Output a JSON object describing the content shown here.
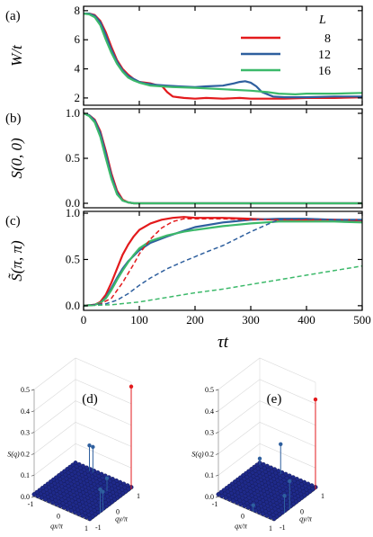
{
  "chart_data": [
    {
      "panel": "(a)",
      "type": "line",
      "ylabel": "W/t",
      "xlim": [
        0,
        500
      ],
      "ylim": [
        1.5,
        8.3
      ],
      "yticks": [
        "2",
        "4",
        "6",
        "8"
      ],
      "legend": {
        "title": "L",
        "placement": "top-right",
        "entries": [
          "8",
          "12",
          "16"
        ]
      },
      "series": [
        {
          "name": "8",
          "color": "#e31a1c",
          "x": [
            0,
            10,
            20,
            30,
            40,
            50,
            60,
            70,
            80,
            90,
            100,
            110,
            120,
            130,
            140,
            150,
            160,
            170,
            180,
            200,
            220,
            250,
            280,
            300,
            330,
            360,
            400,
            450,
            500
          ],
          "y": [
            7.8,
            7.8,
            7.7,
            7.3,
            6.5,
            5.5,
            4.6,
            4.0,
            3.6,
            3.3,
            3.1,
            3.05,
            3.0,
            2.9,
            2.85,
            2.4,
            2.1,
            2.05,
            2.0,
            1.95,
            2.0,
            1.95,
            2.0,
            1.95,
            1.95,
            1.95,
            2.0,
            2.0,
            2.05
          ]
        },
        {
          "name": "12",
          "color": "#2e5f9e",
          "x": [
            0,
            10,
            20,
            30,
            40,
            50,
            60,
            70,
            80,
            90,
            100,
            110,
            120,
            130,
            150,
            170,
            200,
            220,
            250,
            270,
            280,
            290,
            300,
            310,
            320,
            340,
            360,
            400,
            450,
            500
          ],
          "y": [
            7.8,
            7.8,
            7.65,
            7.2,
            6.3,
            5.3,
            4.5,
            3.9,
            3.5,
            3.3,
            3.1,
            3.0,
            2.95,
            2.9,
            2.85,
            2.8,
            2.75,
            2.8,
            2.85,
            3.0,
            3.1,
            3.15,
            3.05,
            2.8,
            2.4,
            2.1,
            2.05,
            2.05,
            2.1,
            2.1
          ]
        },
        {
          "name": "16",
          "color": "#3cb96a",
          "x": [
            0,
            10,
            20,
            30,
            40,
            50,
            60,
            70,
            80,
            90,
            100,
            110,
            120,
            140,
            160,
            200,
            250,
            300,
            330,
            350,
            380,
            400,
            450,
            500
          ],
          "y": [
            7.8,
            7.75,
            7.55,
            7.0,
            6.0,
            5.1,
            4.35,
            3.8,
            3.4,
            3.2,
            3.05,
            2.95,
            2.85,
            2.8,
            2.75,
            2.7,
            2.6,
            2.5,
            2.4,
            2.3,
            2.25,
            2.3,
            2.3,
            2.35
          ]
        }
      ]
    },
    {
      "panel": "(b)",
      "type": "line",
      "ylabel": "S(0, 0)",
      "xlim": [
        0,
        500
      ],
      "ylim": [
        -0.05,
        1.05
      ],
      "yticks": [
        "0.0",
        "0.5",
        "1.0"
      ],
      "series": [
        {
          "name": "8",
          "color": "#e31a1c",
          "x": [
            0,
            10,
            20,
            30,
            40,
            50,
            60,
            70,
            80,
            90,
            100,
            120,
            500
          ],
          "y": [
            1.0,
            0.98,
            0.93,
            0.8,
            0.58,
            0.33,
            0.14,
            0.04,
            0.01,
            0.0,
            0.0,
            0.0,
            0.0
          ]
        },
        {
          "name": "12",
          "color": "#2e5f9e",
          "x": [
            0,
            10,
            20,
            30,
            40,
            50,
            60,
            70,
            80,
            90,
            100,
            120,
            500
          ],
          "y": [
            1.0,
            0.98,
            0.92,
            0.78,
            0.55,
            0.3,
            0.12,
            0.03,
            0.01,
            0.0,
            0.0,
            0.0,
            0.0
          ]
        },
        {
          "name": "16",
          "color": "#3cb96a",
          "x": [
            0,
            10,
            20,
            30,
            40,
            50,
            60,
            70,
            80,
            90,
            100,
            120,
            500
          ],
          "y": [
            1.0,
            0.97,
            0.9,
            0.74,
            0.5,
            0.27,
            0.1,
            0.03,
            0.01,
            0.0,
            0.0,
            0.0,
            0.0
          ]
        }
      ]
    },
    {
      "panel": "(c)",
      "type": "line",
      "ylabel": "S̃(π, π)",
      "xlabel": "τt",
      "xlim": [
        0,
        500
      ],
      "ylim": [
        -0.05,
        1.02
      ],
      "xticks": [
        "0",
        "100",
        "200",
        "300",
        "400",
        "500"
      ],
      "yticks": [
        "0.0",
        "0.5",
        "1.0"
      ],
      "series": [
        {
          "name": "8",
          "color": "#e31a1c",
          "style": "solid",
          "x": [
            0,
            20,
            30,
            40,
            50,
            60,
            70,
            80,
            90,
            100,
            120,
            140,
            160,
            180,
            200,
            250,
            300,
            350,
            400,
            450,
            500
          ],
          "y": [
            0.0,
            0.01,
            0.04,
            0.12,
            0.25,
            0.4,
            0.55,
            0.66,
            0.75,
            0.82,
            0.89,
            0.93,
            0.95,
            0.96,
            0.95,
            0.95,
            0.94,
            0.93,
            0.93,
            0.93,
            0.92
          ]
        },
        {
          "name": "12",
          "color": "#2e5f9e",
          "style": "solid",
          "x": [
            0,
            20,
            30,
            40,
            50,
            60,
            70,
            80,
            90,
            100,
            120,
            150,
            180,
            200,
            250,
            300,
            350,
            400,
            450,
            500
          ],
          "y": [
            0.0,
            0.01,
            0.03,
            0.09,
            0.19,
            0.3,
            0.4,
            0.48,
            0.54,
            0.6,
            0.68,
            0.75,
            0.81,
            0.85,
            0.9,
            0.93,
            0.94,
            0.94,
            0.93,
            0.93
          ]
        },
        {
          "name": "16",
          "color": "#3cb96a",
          "style": "solid",
          "x": [
            0,
            20,
            30,
            40,
            50,
            60,
            70,
            80,
            90,
            100,
            120,
            150,
            180,
            200,
            250,
            300,
            350,
            400,
            450,
            500
          ],
          "y": [
            0.0,
            0.01,
            0.03,
            0.08,
            0.17,
            0.28,
            0.38,
            0.47,
            0.55,
            0.62,
            0.7,
            0.76,
            0.8,
            0.82,
            0.86,
            0.89,
            0.91,
            0.91,
            0.91,
            0.9
          ]
        },
        {
          "name": "8",
          "color": "#e31a1c",
          "style": "dashed",
          "x": [
            0,
            30,
            50,
            70,
            90,
            100,
            120,
            140,
            160,
            180,
            200,
            250,
            300,
            350,
            400,
            450,
            500
          ],
          "y": [
            0.0,
            0.02,
            0.08,
            0.25,
            0.45,
            0.56,
            0.72,
            0.84,
            0.91,
            0.94,
            0.94,
            0.94,
            0.93,
            0.93,
            0.93,
            0.93,
            0.93
          ]
        },
        {
          "name": "12",
          "color": "#2e5f9e",
          "style": "dashed",
          "x": [
            0,
            40,
            60,
            80,
            100,
            120,
            150,
            180,
            200,
            220,
            250,
            280,
            300,
            330,
            350,
            380,
            400,
            450,
            500
          ],
          "y": [
            0.0,
            0.02,
            0.06,
            0.13,
            0.22,
            0.3,
            0.4,
            0.48,
            0.53,
            0.58,
            0.65,
            0.74,
            0.8,
            0.88,
            0.93,
            0.94,
            0.94,
            0.93,
            0.93
          ]
        },
        {
          "name": "16",
          "color": "#3cb96a",
          "style": "dashed",
          "x": [
            0,
            50,
            100,
            150,
            200,
            250,
            300,
            350,
            400,
            450,
            500
          ],
          "y": [
            0.0,
            0.01,
            0.04,
            0.09,
            0.14,
            0.18,
            0.23,
            0.28,
            0.33,
            0.38,
            0.43
          ]
        }
      ]
    },
    {
      "panel": "(d)",
      "type": "scatter",
      "zlabel": "S(q)",
      "xlabel": "qx/π",
      "ylabel": "qy/π",
      "zlim": [
        0,
        0.5
      ],
      "zticks": [
        "0.0",
        "0.1",
        "0.2",
        "0.3",
        "0.4",
        "0.5"
      ],
      "xticks": [
        "-1",
        "0",
        "1"
      ],
      "yticks": [
        "-1",
        "0",
        "1"
      ],
      "grid_size": 16,
      "base_value": 0.01,
      "peaks": [
        {
          "qx": 1.0,
          "qy": 1.0,
          "value": 0.48,
          "color": "#e31a1c"
        },
        {
          "qx": -0.5,
          "qy": 1.0,
          "value": 0.12,
          "color": "#2e5f9e"
        },
        {
          "qx": -0.375,
          "qy": 1.0,
          "value": 0.12,
          "color": "#2e5f9e"
        },
        {
          "qx": 1.0,
          "qy": -0.5,
          "value": 0.11,
          "color": "#2e5f9e"
        },
        {
          "qx": 1.0,
          "qy": -0.375,
          "value": 0.09,
          "color": "#2e5f9e"
        },
        {
          "qx": 0.5,
          "qy": 0.5,
          "value": 0.06,
          "color": "#2e5f9e"
        }
      ]
    },
    {
      "panel": "(e)",
      "type": "scatter",
      "zlabel": "S(q)",
      "xlabel": "qx/π",
      "ylabel": "qy/π",
      "zlim": [
        0,
        0.5
      ],
      "zticks": [
        "0.0",
        "0.1",
        "0.2",
        "0.3",
        "0.4",
        "0.5"
      ],
      "xticks": [
        "-1",
        "0",
        "1"
      ],
      "yticks": [
        "-1",
        "0",
        "1"
      ],
      "grid_size": 16,
      "base_value": 0.01,
      "peaks": [
        {
          "qx": 1.0,
          "qy": 1.0,
          "value": 0.42,
          "color": "#e31a1c"
        },
        {
          "qx": -0.25,
          "qy": 1.0,
          "value": 0.14,
          "color": "#2e5f9e"
        },
        {
          "qx": 1.0,
          "qy": -0.25,
          "value": 0.13,
          "color": "#2e5f9e"
        },
        {
          "qx": 1.0,
          "qy": -0.5,
          "value": 0.08,
          "color": "#2e5f9e"
        },
        {
          "qx": -1.0,
          "qy": 1.0,
          "value": 0.03,
          "color": "#2e5f9e"
        },
        {
          "qx": 0.25,
          "qy": -1.0,
          "value": 0.03,
          "color": "#2e5f9e"
        }
      ]
    }
  ]
}
